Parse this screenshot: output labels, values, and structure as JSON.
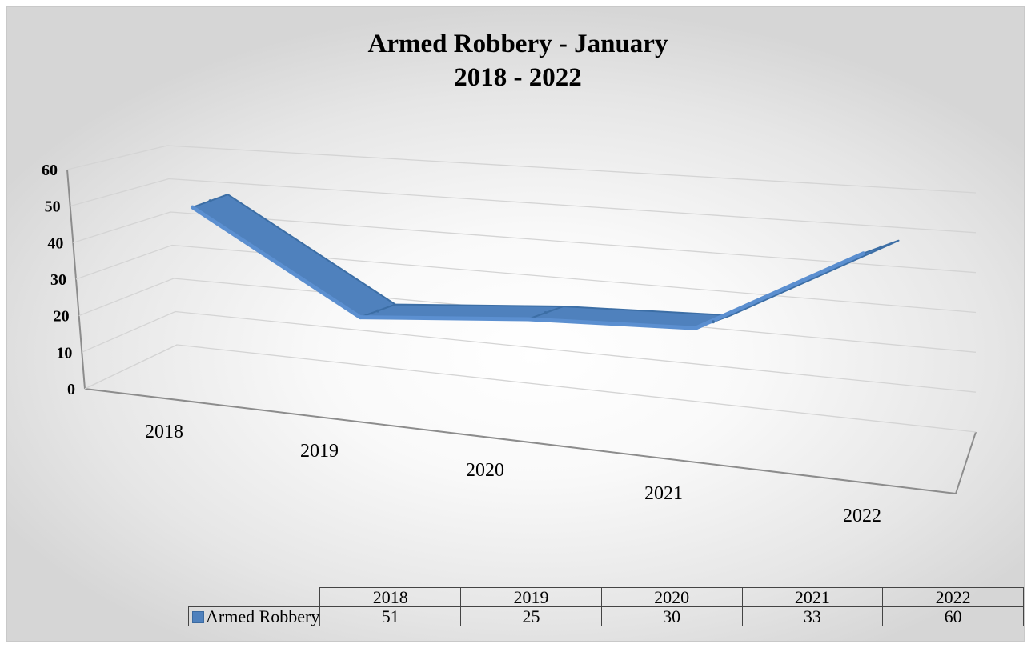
{
  "chart_data": {
    "type": "line",
    "style": "3d-ribbon",
    "title_lines": [
      "Armed Robbery - January",
      "2018 - 2022"
    ],
    "categories": [
      "2018",
      "2019",
      "2020",
      "2021",
      "2022"
    ],
    "series": [
      {
        "name": "Armed Robbery",
        "values": [
          51,
          25,
          30,
          33,
          60
        ],
        "color": "#4f81bd"
      }
    ],
    "y_ticks": [
      "0",
      "10",
      "20",
      "30",
      "40",
      "50",
      "60"
    ],
    "ylim": [
      0,
      60
    ],
    "grid": true,
    "data_table": true,
    "legend_in_table": true
  }
}
